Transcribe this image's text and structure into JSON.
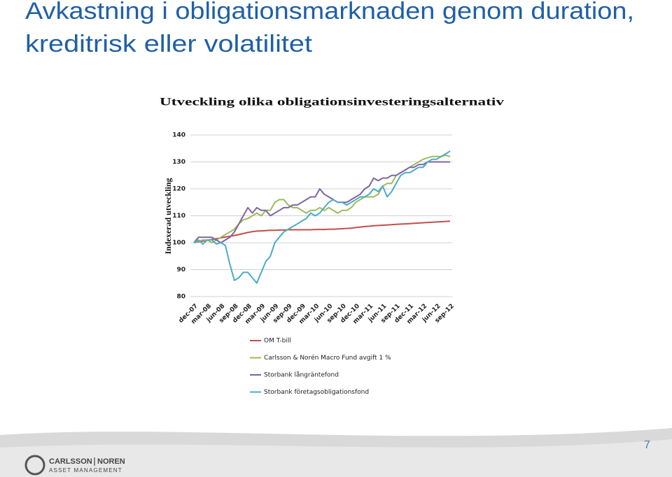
{
  "slide_title": [
    "Avkastning i obligationsmarknaden genom duration,",
    "kreditrisk eller volatilitet"
  ],
  "page_number": "7",
  "logo": {
    "name": [
      "CARLSSON",
      "NOREN"
    ],
    "subtitle": "ASSET MANAGEMENT"
  },
  "chart_data": {
    "type": "line",
    "title": "Utveckling olika obligationsinvesteringsalternativ",
    "y_label": "Indexerad utveckling",
    "categories": [
      "dec-07",
      null,
      null,
      "mar-08",
      null,
      null,
      "jun-08",
      null,
      null,
      "sep-08",
      null,
      null,
      "dec-08",
      null,
      null,
      "mar-09",
      null,
      null,
      "jun-09",
      null,
      null,
      "sep-09",
      null,
      null,
      "dec-09",
      null,
      null,
      "mar-10",
      null,
      null,
      "jun-10",
      null,
      null,
      "sep-10",
      null,
      null,
      "dec-10",
      null,
      null,
      "mar-11",
      null,
      null,
      "jun-11",
      null,
      null,
      "sep-11",
      null,
      null,
      "dec-11",
      null,
      null,
      "mar-12",
      null,
      null,
      "jun-12",
      null,
      null,
      "sep-12"
    ],
    "ylim": [
      80,
      140
    ],
    "yticks": [
      80,
      90,
      100,
      110,
      120,
      130,
      140
    ],
    "grid": true,
    "series": [
      {
        "name": "OM T-bill",
        "color": "#c0504d",
        "values": [
          100,
          100.3,
          100.6,
          100.9,
          101.2,
          101.5,
          101.8,
          102.1,
          102.4,
          102.7,
          103,
          103.4,
          103.8,
          104.1,
          104.3,
          104.4,
          104.5,
          104.6,
          104.6,
          104.7,
          104.7,
          104.8,
          104.8,
          104.8,
          104.8,
          104.8,
          104.8,
          104.9,
          104.9,
          104.9,
          105,
          105,
          105.1,
          105.2,
          105.3,
          105.4,
          105.6,
          105.8,
          106,
          106.1,
          106.3,
          106.4,
          106.5,
          106.6,
          106.7,
          106.8,
          106.9,
          107,
          107.1,
          107.2,
          107.3,
          107.4,
          107.5,
          107.6,
          107.7,
          107.8,
          107.9,
          108
        ]
      },
      {
        "name": "Carlsson & Norén Macro Fund avgift 1 %",
        "color": "#9bbb59",
        "values": [
          100,
          100.5,
          101,
          101,
          100,
          101,
          102,
          103,
          104,
          105,
          107,
          108.5,
          109,
          110,
          111,
          110,
          112,
          112,
          115,
          116,
          116,
          114,
          113,
          113,
          112,
          111,
          112,
          112,
          113,
          112,
          113,
          112,
          111,
          112,
          112,
          113,
          115,
          116,
          117,
          117,
          117,
          118,
          121,
          122,
          122,
          125,
          126,
          127,
          128,
          129,
          130,
          131,
          131.5,
          132,
          132,
          132,
          132.5,
          132
        ]
      },
      {
        "name": "Storbank långräntefond",
        "color": "#8064a2",
        "values": [
          100,
          102,
          102,
          102,
          102,
          101,
          100,
          101,
          102,
          104,
          107,
          110,
          113,
          111,
          113,
          112,
          112,
          110,
          111,
          112,
          113,
          113,
          114,
          114,
          115,
          116,
          117,
          117,
          120,
          118,
          117,
          116,
          115,
          115,
          115,
          116,
          117,
          118,
          120,
          121,
          124,
          123,
          124,
          124,
          125,
          125,
          126,
          127,
          128,
          128,
          129,
          129,
          130,
          130,
          130,
          130,
          130,
          130
        ]
      },
      {
        "name": "Storbank företagsobligationsfond",
        "color": "#4bacc6",
        "values": [
          100,
          101,
          99.5,
          101,
          101,
          99.5,
          100,
          99,
          92,
          86,
          87,
          89,
          89,
          87,
          85,
          89,
          93,
          95,
          100,
          102,
          104,
          105,
          106,
          107,
          108,
          109,
          111,
          110,
          111,
          113,
          115,
          116,
          115,
          115,
          114,
          115,
          116,
          117,
          117,
          118,
          120,
          119,
          121,
          117,
          119,
          122,
          125,
          126,
          126,
          127,
          128,
          128,
          130,
          131,
          131,
          132,
          133,
          134
        ]
      }
    ]
  }
}
